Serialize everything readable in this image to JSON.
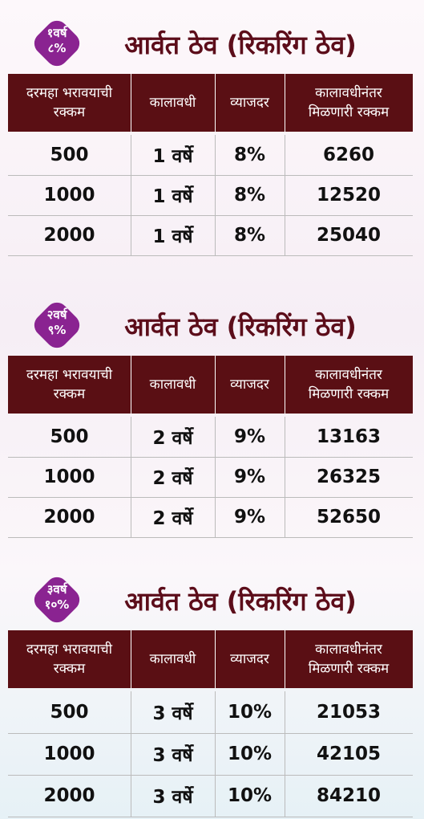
{
  "sections": [
    {
      "badge": {
        "line1": "१वर्ष",
        "line2": "८%"
      },
      "title": "आर्वत ठेव (रिकरिंग ठेव)",
      "table": {
        "headers": [
          [
            "दरमहा भरावयाची",
            "रक्कम"
          ],
          [
            "कालावधी"
          ],
          [
            "व्याजदर"
          ],
          [
            "कालावधीनंतर",
            "मिळणारी रक्कम"
          ]
        ],
        "rows": [
          [
            "500",
            "1 वर्षे",
            "8%",
            "6260"
          ],
          [
            "1000",
            "1 वर्षे",
            "8%",
            "12520"
          ],
          [
            "2000",
            "1 वर्षे",
            "8%",
            "25040"
          ]
        ]
      }
    },
    {
      "badge": {
        "line1": "२वर्ष",
        "line2": "९%"
      },
      "title": "आर्वत ठेव (रिकरिंग ठेव)",
      "table": {
        "headers": [
          [
            "दरमहा भरावयाची",
            "रक्कम"
          ],
          [
            "कालावधी"
          ],
          [
            "व्याजदर"
          ],
          [
            "कालावधीनंतर",
            "मिळणारी रक्कम"
          ]
        ],
        "rows": [
          [
            "500",
            "2 वर्षे",
            "9%",
            "13163"
          ],
          [
            "1000",
            "2 वर्षे",
            "9%",
            "26325"
          ],
          [
            "2000",
            "2 वर्षे",
            "9%",
            "52650"
          ]
        ]
      }
    },
    {
      "badge": {
        "line1": "३वर्ष",
        "line2": "१०%"
      },
      "title": "आर्वत ठेव (रिकरिंग ठेव)",
      "table": {
        "headers": [
          [
            "दरमहा भरावयाची",
            "रक्कम"
          ],
          [
            "कालावधी"
          ],
          [
            "व्याजदर"
          ],
          [
            "कालावधीनंतर",
            "मिळणारी रक्कम"
          ]
        ],
        "rows": [
          [
            "500",
            "3 वर्षे",
            "10%",
            "21053"
          ],
          [
            "1000",
            "3 वर्षे",
            "10%",
            "42105"
          ],
          [
            "2000",
            "3 वर्षे",
            "10%",
            "84210"
          ]
        ]
      }
    }
  ]
}
